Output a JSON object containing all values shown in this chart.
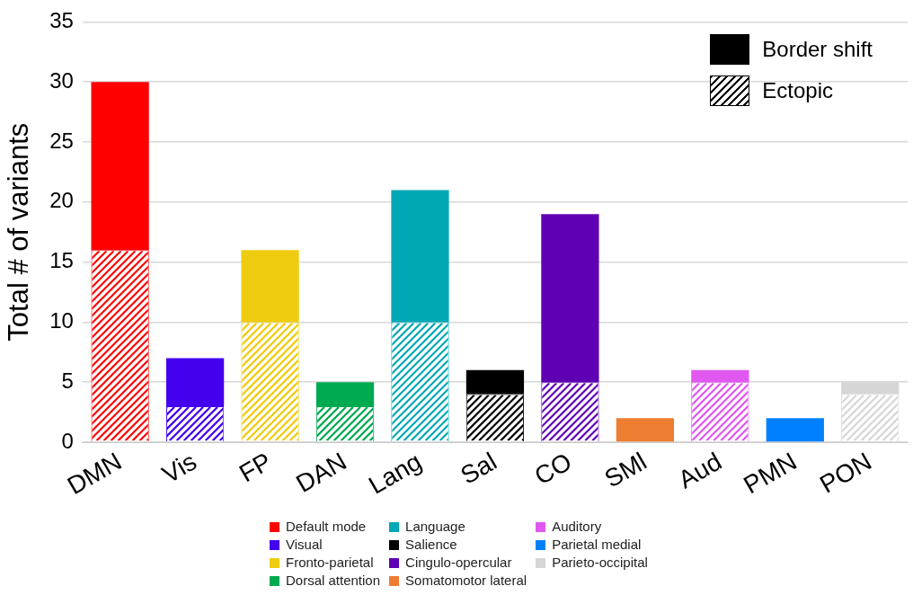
{
  "chart_data": {
    "type": "bar",
    "stacked": true,
    "ylabel": "Total # of variants",
    "categories": [
      "DMN",
      "Vis",
      "FP",
      "DAN",
      "Lang",
      "Sal",
      "CO",
      "SMl",
      "Aud",
      "PMN",
      "PON"
    ],
    "series": [
      {
        "name": "Ectopic",
        "color": "#000000",
        "colors": [
          "#ff0000",
          "#4400ee",
          "#f0cc10",
          "#00aa50",
          "#00a8b5",
          "#000000",
          "#6000b5",
          "#ed7d31",
          "#e058f0",
          "#0080ff",
          "#d6d6d6"
        ],
        "values": [
          16,
          3,
          10,
          3,
          10,
          4,
          5,
          0,
          5,
          0,
          4
        ]
      },
      {
        "name": "Border shift",
        "color": "#000000",
        "colors": [
          "#ff0000",
          "#4400ee",
          "#f0cc10",
          "#00aa50",
          "#00a8b5",
          "#000000",
          "#6000b5",
          "#ed7d31",
          "#e058f0",
          "#0080ff",
          "#d6d6d6"
        ],
        "values": [
          14,
          4,
          6,
          2,
          11,
          2,
          14,
          2,
          1,
          2,
          1
        ]
      }
    ],
    "ylim": [
      0,
      35
    ],
    "yticks": [
      0,
      5,
      10,
      15,
      20,
      25,
      30,
      35
    ],
    "grid": "y",
    "legend": "top right",
    "annotations": [
      "Default mode",
      "Visual",
      "Fronto-parietal",
      "Dorsal attention",
      "Language",
      "Salience",
      "Cingulo-opercular",
      "Somatomotor lateral",
      "Auditory",
      "Parietal medial",
      "Parieto-occipital"
    ]
  }
}
